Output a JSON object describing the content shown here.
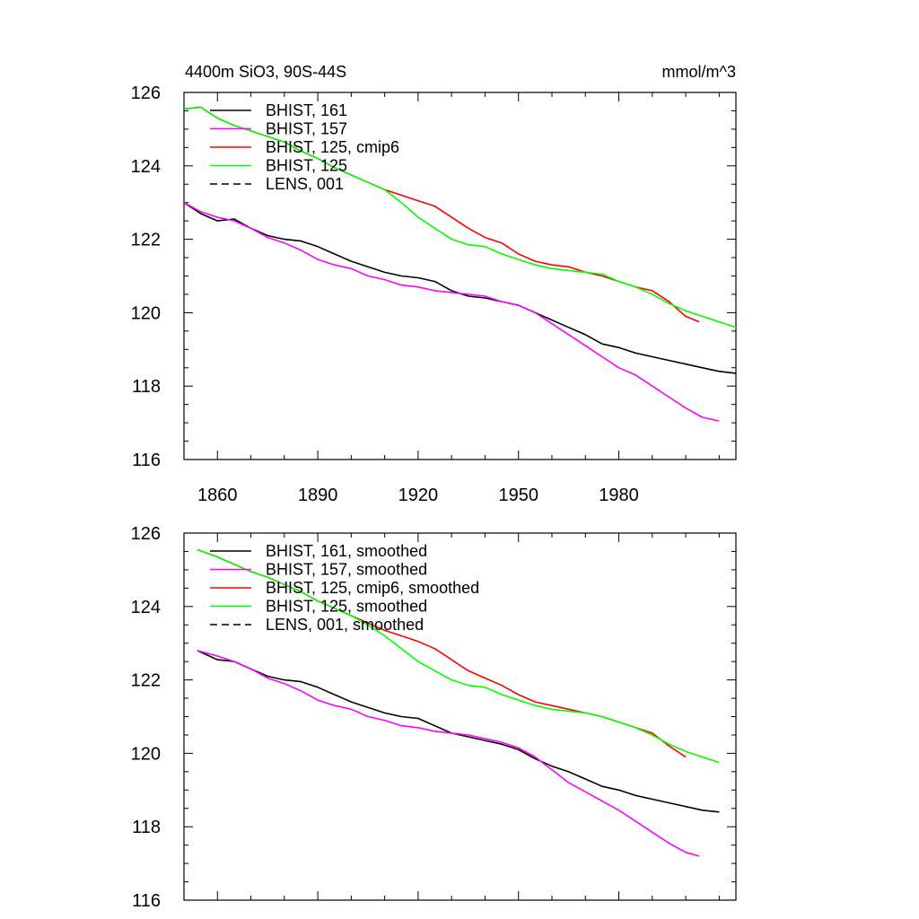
{
  "colors": {
    "bhist_161": "#000000",
    "bhist_157": "#ff00ff",
    "bhist_125_cmip6": "#ff0000",
    "bhist_125": "#00ff00",
    "lens_001": "#000000"
  },
  "chart_data": [
    {
      "type": "line",
      "title": "4400m SiO3, 90S-44S",
      "units": "mmol/m^3",
      "xlabel": "",
      "ylabel": "",
      "xlim": [
        1850,
        2015
      ],
      "ylim": [
        116,
        126
      ],
      "xticks": [
        1860,
        1890,
        1920,
        1950,
        1980
      ],
      "xtick_labels": [
        "1860",
        "1890",
        "1920",
        "1950",
        "1980"
      ],
      "yticks": [
        116,
        118,
        120,
        122,
        124,
        126
      ],
      "ytick_labels": [
        "116",
        "118",
        "120",
        "122",
        "124",
        "126"
      ],
      "grid": false,
      "legend_position": "top-left",
      "series": [
        {
          "name": "BHIST, 161",
          "color": "#000000",
          "dash": "solid",
          "x": [
            1850,
            1855,
            1860,
            1865,
            1870,
            1875,
            1880,
            1885,
            1890,
            1895,
            1900,
            1905,
            1910,
            1915,
            1920,
            1925,
            1930,
            1935,
            1940,
            1945,
            1950,
            1955,
            1960,
            1965,
            1970,
            1975,
            1980,
            1985,
            1990,
            1995,
            2000,
            2005,
            2010,
            2015
          ],
          "y": [
            123.0,
            122.7,
            122.5,
            122.55,
            122.3,
            122.1,
            122.0,
            121.95,
            121.8,
            121.6,
            121.4,
            121.25,
            121.1,
            121.0,
            120.95,
            120.85,
            120.6,
            120.45,
            120.4,
            120.3,
            120.2,
            120.0,
            119.8,
            119.6,
            119.4,
            119.15,
            119.05,
            118.9,
            118.8,
            118.7,
            118.6,
            118.5,
            118.4,
            118.35
          ]
        },
        {
          "name": "BHIST, 157",
          "color": "#ff00ff",
          "dash": "solid",
          "x": [
            1850,
            1855,
            1860,
            1865,
            1870,
            1875,
            1880,
            1885,
            1890,
            1895,
            1900,
            1905,
            1910,
            1915,
            1920,
            1925,
            1930,
            1935,
            1940,
            1945,
            1950,
            1955,
            1960,
            1965,
            1970,
            1975,
            1980,
            1985,
            1990,
            1995,
            2000,
            2005,
            2010
          ],
          "y": [
            123.0,
            122.75,
            122.6,
            122.5,
            122.3,
            122.05,
            121.9,
            121.7,
            121.45,
            121.3,
            121.2,
            121.0,
            120.9,
            120.75,
            120.7,
            120.6,
            120.55,
            120.5,
            120.45,
            120.3,
            120.2,
            120.0,
            119.7,
            119.4,
            119.1,
            118.8,
            118.5,
            118.3,
            118.0,
            117.7,
            117.4,
            117.15,
            117.05
          ]
        },
        {
          "name": "BHIST, 125, cmip6",
          "color": "#ff0000",
          "dash": "solid",
          "x": [
            1850,
            1855,
            1860,
            1865,
            1870,
            1875,
            1880,
            1885,
            1890,
            1895,
            1900,
            1905,
            1910,
            1915,
            1920,
            1925,
            1930,
            1935,
            1940,
            1945,
            1950,
            1955,
            1960,
            1965,
            1970,
            1975,
            1980,
            1985,
            1990,
            1995,
            2000,
            2004
          ],
          "y": [
            125.55,
            125.6,
            125.3,
            125.1,
            124.95,
            124.8,
            124.65,
            124.4,
            124.2,
            123.95,
            123.75,
            123.55,
            123.35,
            123.2,
            123.05,
            122.9,
            122.6,
            122.3,
            122.05,
            121.9,
            121.6,
            121.4,
            121.3,
            121.25,
            121.1,
            121.0,
            120.85,
            120.7,
            120.6,
            120.3,
            119.9,
            119.75
          ]
        },
        {
          "name": "BHIST, 125",
          "color": "#00ff00",
          "dash": "solid",
          "x": [
            1850,
            1855,
            1860,
            1865,
            1870,
            1875,
            1880,
            1885,
            1890,
            1895,
            1900,
            1905,
            1910,
            1915,
            1920,
            1925,
            1930,
            1935,
            1940,
            1945,
            1950,
            1955,
            1960,
            1965,
            1970,
            1975,
            1980,
            1985,
            1990,
            1995,
            2000,
            2005,
            2010,
            2015
          ],
          "y": [
            125.55,
            125.6,
            125.3,
            125.1,
            124.95,
            124.8,
            124.65,
            124.4,
            124.2,
            123.95,
            123.75,
            123.55,
            123.35,
            123.0,
            122.6,
            122.3,
            122.0,
            121.85,
            121.8,
            121.6,
            121.45,
            121.3,
            121.2,
            121.15,
            121.1,
            121.05,
            120.85,
            120.7,
            120.5,
            120.25,
            120.05,
            119.9,
            119.75,
            119.6
          ]
        },
        {
          "name": "LENS, 001",
          "color": "#000000",
          "dash": "dashed",
          "x": [],
          "y": []
        }
      ]
    },
    {
      "type": "line",
      "title": "",
      "xlabel": "",
      "ylabel": "",
      "xlim": [
        1850,
        2015
      ],
      "ylim": [
        116,
        126
      ],
      "xticks": [
        1860,
        1890,
        1920,
        1950,
        1980
      ],
      "yticks": [
        116,
        118,
        120,
        122,
        124,
        126
      ],
      "ytick_labels": [
        "116",
        "118",
        "120",
        "122",
        "124",
        "126"
      ],
      "grid": false,
      "legend_position": "top-left",
      "series": [
        {
          "name": "BHIST, 161, smoothed",
          "color": "#000000",
          "dash": "solid",
          "x": [
            1854,
            1860,
            1865,
            1870,
            1875,
            1880,
            1885,
            1890,
            1895,
            1900,
            1905,
            1910,
            1915,
            1920,
            1925,
            1930,
            1935,
            1940,
            1945,
            1950,
            1955,
            1960,
            1965,
            1970,
            1975,
            1980,
            1985,
            1990,
            1995,
            2000,
            2005,
            2010
          ],
          "y": [
            122.8,
            122.55,
            122.5,
            122.3,
            122.1,
            122.0,
            121.95,
            121.8,
            121.6,
            121.4,
            121.25,
            121.1,
            121.0,
            120.95,
            120.75,
            120.55,
            120.45,
            120.35,
            120.25,
            120.1,
            119.85,
            119.65,
            119.5,
            119.3,
            119.1,
            119.0,
            118.85,
            118.75,
            118.65,
            118.55,
            118.45,
            118.4
          ]
        },
        {
          "name": "BHIST, 157, smoothed",
          "color": "#ff00ff",
          "dash": "solid",
          "x": [
            1854,
            1860,
            1865,
            1870,
            1875,
            1880,
            1885,
            1890,
            1895,
            1900,
            1905,
            1910,
            1915,
            1920,
            1925,
            1930,
            1935,
            1940,
            1945,
            1950,
            1955,
            1960,
            1965,
            1970,
            1975,
            1980,
            1985,
            1990,
            1995,
            2000,
            2004
          ],
          "y": [
            122.8,
            122.65,
            122.5,
            122.3,
            122.05,
            121.9,
            121.7,
            121.45,
            121.3,
            121.2,
            121.0,
            120.9,
            120.75,
            120.7,
            120.6,
            120.55,
            120.5,
            120.4,
            120.3,
            120.15,
            119.9,
            119.55,
            119.2,
            118.95,
            118.7,
            118.45,
            118.15,
            117.85,
            117.55,
            117.3,
            117.2
          ]
        },
        {
          "name": "BHIST, 125, cmip6, smoothed",
          "color": "#ff0000",
          "dash": "solid",
          "x": [
            1854,
            1860,
            1865,
            1870,
            1875,
            1880,
            1885,
            1890,
            1895,
            1900,
            1905,
            1910,
            1915,
            1920,
            1925,
            1930,
            1935,
            1940,
            1945,
            1950,
            1955,
            1960,
            1965,
            1970,
            1975,
            1980,
            1985,
            1990,
            1995,
            2000
          ],
          "y": [
            125.55,
            125.35,
            125.15,
            124.95,
            124.8,
            124.6,
            124.4,
            124.15,
            123.95,
            123.75,
            123.55,
            123.35,
            123.2,
            123.05,
            122.85,
            122.55,
            122.25,
            122.05,
            121.85,
            121.6,
            121.4,
            121.3,
            121.2,
            121.1,
            121.0,
            120.85,
            120.7,
            120.55,
            120.2,
            119.9
          ]
        },
        {
          "name": "BHIST, 125, smoothed",
          "color": "#00ff00",
          "dash": "solid",
          "x": [
            1854,
            1860,
            1865,
            1870,
            1875,
            1880,
            1885,
            1890,
            1895,
            1900,
            1905,
            1910,
            1915,
            1920,
            1925,
            1930,
            1935,
            1940,
            1945,
            1950,
            1955,
            1960,
            1965,
            1970,
            1975,
            1980,
            1985,
            1990,
            1995,
            2000,
            2005,
            2010
          ],
          "y": [
            125.55,
            125.35,
            125.15,
            124.95,
            124.8,
            124.6,
            124.4,
            124.15,
            123.95,
            123.75,
            123.5,
            123.2,
            122.85,
            122.5,
            122.25,
            122.0,
            121.85,
            121.8,
            121.6,
            121.45,
            121.3,
            121.2,
            121.15,
            121.1,
            121.0,
            120.85,
            120.7,
            120.5,
            120.25,
            120.05,
            119.9,
            119.75
          ]
        },
        {
          "name": "LENS, 001, smoothed",
          "color": "#000000",
          "dash": "dashed",
          "x": [],
          "y": []
        }
      ]
    }
  ]
}
